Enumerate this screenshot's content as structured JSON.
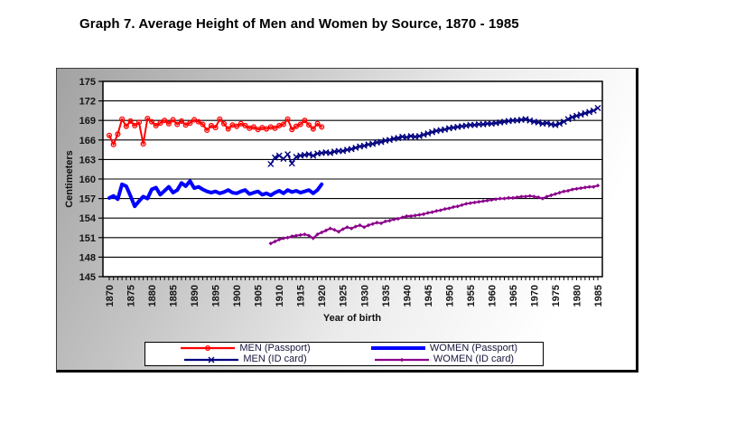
{
  "page": {
    "title": "Graph 7. Average Height of Men and Women by Source, 1870 - 1985"
  },
  "chart_data": {
    "type": "line",
    "title": "Graph 7. Average Height of Men and Women by Source, 1870 - 1985",
    "xlabel": "Year of birth",
    "ylabel": "Centimeters",
    "x_range": [
      1870,
      1985
    ],
    "y_range": [
      145,
      175
    ],
    "y_ticks": [
      175,
      172,
      169,
      166,
      163,
      160,
      157,
      154,
      151,
      148,
      145
    ],
    "x_ticks": [
      1870,
      1875,
      1880,
      1885,
      1890,
      1895,
      1900,
      1905,
      1910,
      1915,
      1920,
      1925,
      1930,
      1935,
      1940,
      1945,
      1950,
      1955,
      1960,
      1965,
      1970,
      1975,
      1980,
      1985
    ],
    "x_minor_tick_step": 1,
    "grid": "horizontal",
    "legend_position": "bottom",
    "plot_bg": "#ffffff",
    "grid_color": "#000000",
    "series": [
      {
        "name": "MEN (Passport)",
        "color": "#ff0000",
        "marker": "circle",
        "line_width": 2,
        "start_year": 1870,
        "values": [
          166.7,
          165.3,
          166.9,
          169.2,
          168.1,
          168.9,
          168.2,
          168.7,
          165.4,
          169.3,
          168.8,
          168.2,
          168.6,
          169.0,
          168.5,
          169.1,
          168.4,
          168.9,
          168.3,
          168.6,
          169.1,
          168.8,
          168.4,
          167.5,
          168.2,
          167.9,
          169.2,
          168.5,
          167.7,
          168.3,
          168.1,
          168.5,
          168.2,
          167.8,
          168.0,
          167.6,
          167.9,
          167.7,
          168.0,
          167.8,
          168.2,
          168.4,
          169.2,
          167.6,
          168.1,
          168.4,
          169.0,
          168.3,
          167.7,
          168.5,
          168.0
        ]
      },
      {
        "name": "WOMEN (Passport)",
        "color": "#0000ff",
        "marker": "none",
        "line_width": 4,
        "start_year": 1870,
        "values": [
          157.1,
          157.4,
          156.9,
          159.2,
          158.9,
          157.4,
          155.8,
          156.6,
          157.3,
          157.0,
          158.4,
          158.7,
          157.6,
          158.2,
          158.8,
          157.9,
          158.3,
          159.4,
          158.9,
          159.7,
          158.6,
          158.8,
          158.4,
          158.1,
          157.9,
          158.1,
          157.8,
          158.0,
          158.3,
          157.9,
          157.8,
          158.1,
          158.3,
          157.7,
          157.9,
          158.1,
          157.6,
          157.8,
          157.5,
          157.9,
          158.2,
          157.8,
          158.3,
          158.0,
          158.2,
          157.9,
          158.1,
          158.3,
          157.8,
          158.3,
          159.2
        ]
      },
      {
        "name": "MEN (ID card)",
        "color": "#000080",
        "marker": "x",
        "line_width": 1.6,
        "start_year": 1908,
        "values": [
          162.3,
          163.3,
          163.6,
          163.1,
          163.8,
          162.4,
          163.4,
          163.6,
          163.7,
          163.8,
          163.6,
          163.9,
          164.0,
          164.1,
          164.0,
          164.2,
          164.3,
          164.3,
          164.5,
          164.6,
          164.8,
          165.0,
          165.1,
          165.3,
          165.4,
          165.6,
          165.7,
          165.9,
          166.0,
          166.2,
          166.3,
          166.5,
          166.4,
          166.6,
          166.5,
          166.6,
          166.8,
          167.0,
          167.2,
          167.4,
          167.5,
          167.6,
          167.8,
          167.9,
          168.0,
          168.1,
          168.2,
          168.3,
          168.3,
          168.4,
          168.4,
          168.5,
          168.5,
          168.6,
          168.7,
          168.8,
          168.9,
          169.0,
          169.0,
          169.1,
          169.2,
          169.0,
          168.8,
          168.7,
          168.5,
          168.6,
          168.4,
          168.3,
          168.5,
          168.8,
          169.2,
          169.5,
          169.7,
          169.9,
          170.1,
          170.3,
          170.5,
          170.9
        ]
      },
      {
        "name": "WOMEN (ID card)",
        "color": "#8b008b",
        "marker": "diamond",
        "line_width": 2,
        "start_year": 1908,
        "values": [
          150.1,
          150.4,
          150.7,
          150.9,
          151.0,
          151.2,
          151.3,
          151.4,
          151.5,
          151.3,
          150.9,
          151.5,
          151.8,
          152.1,
          152.4,
          152.2,
          151.9,
          152.3,
          152.6,
          152.4,
          152.7,
          152.9,
          152.6,
          152.9,
          153.1,
          153.3,
          153.2,
          153.5,
          153.6,
          153.8,
          153.9,
          154.1,
          154.3,
          154.3,
          154.4,
          154.5,
          154.6,
          154.8,
          154.9,
          155.1,
          155.2,
          155.4,
          155.5,
          155.7,
          155.8,
          156.0,
          156.2,
          156.3,
          156.4,
          156.5,
          156.6,
          156.7,
          156.8,
          156.9,
          157.0,
          157.0,
          157.1,
          157.1,
          157.2,
          157.3,
          157.3,
          157.4,
          157.3,
          157.2,
          157.0,
          157.3,
          157.5,
          157.7,
          157.9,
          158.1,
          158.2,
          158.4,
          158.5,
          158.6,
          158.7,
          158.8,
          158.8,
          159.0
        ]
      }
    ]
  }
}
